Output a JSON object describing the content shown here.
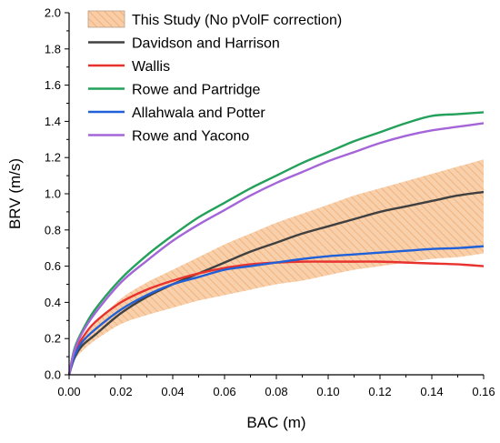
{
  "chart_data": {
    "type": "line",
    "xlabel": "BAC (m)",
    "ylabel": "BRV (m/s)",
    "xlim": [
      0,
      0.16
    ],
    "ylim": [
      0,
      2.0
    ],
    "xticks": [
      0.0,
      0.02,
      0.04,
      0.06,
      0.08,
      0.1,
      0.12,
      0.14,
      0.16
    ],
    "xtick_labels": [
      "0.00",
      "0.02",
      "0.04",
      "0.06",
      "0.08",
      "0.10",
      "0.12",
      "0.14",
      "0.16"
    ],
    "yticks": [
      0.0,
      0.2,
      0.4,
      0.6,
      0.8,
      1.0,
      1.2,
      1.4,
      1.6,
      1.8,
      2.0
    ],
    "ytick_labels": [
      "0.0",
      "0.2",
      "0.4",
      "0.6",
      "0.8",
      "1.0",
      "1.2",
      "1.4",
      "1.6",
      "1.8",
      "2.0"
    ],
    "grid": false,
    "legend_position": "top-left",
    "x": [
      0,
      0.002,
      0.005,
      0.01,
      0.02,
      0.03,
      0.04,
      0.05,
      0.06,
      0.07,
      0.08,
      0.09,
      0.1,
      0.11,
      0.12,
      0.13,
      0.14,
      0.15,
      0.16
    ],
    "band": {
      "name": "This Study (No pVolF correction)",
      "fill_color": "#f8c9a0",
      "hatch_color": "#f0a868",
      "lower": [
        0,
        0.08,
        0.13,
        0.19,
        0.28,
        0.33,
        0.37,
        0.41,
        0.44,
        0.47,
        0.5,
        0.52,
        0.55,
        0.58,
        0.6,
        0.62,
        0.64,
        0.65,
        0.67
      ],
      "upper": [
        0,
        0.12,
        0.19,
        0.28,
        0.42,
        0.51,
        0.58,
        0.65,
        0.72,
        0.78,
        0.84,
        0.89,
        0.94,
        0.99,
        1.03,
        1.07,
        1.11,
        1.15,
        1.19
      ]
    },
    "series": [
      {
        "name": "Davidson and Harrison",
        "color": "#404040",
        "values": [
          0,
          0.09,
          0.16,
          0.22,
          0.34,
          0.43,
          0.5,
          0.56,
          0.62,
          0.68,
          0.73,
          0.78,
          0.82,
          0.86,
          0.9,
          0.93,
          0.96,
          0.99,
          1.01
        ]
      },
      {
        "name": "Wallis",
        "color": "#e8322e",
        "values": [
          0,
          0.12,
          0.2,
          0.29,
          0.4,
          0.47,
          0.52,
          0.56,
          0.59,
          0.61,
          0.62,
          0.625,
          0.625,
          0.625,
          0.625,
          0.62,
          0.615,
          0.61,
          0.6
        ]
      },
      {
        "name": "Rowe and Partridge",
        "color": "#23a05a",
        "values": [
          0,
          0.14,
          0.24,
          0.36,
          0.53,
          0.66,
          0.77,
          0.87,
          0.95,
          1.03,
          1.1,
          1.17,
          1.23,
          1.29,
          1.34,
          1.39,
          1.43,
          1.44,
          1.45
        ]
      },
      {
        "name": "Allahwala and Potter",
        "color": "#2060d8",
        "values": [
          0,
          0.1,
          0.18,
          0.25,
          0.36,
          0.44,
          0.5,
          0.54,
          0.58,
          0.6,
          0.62,
          0.64,
          0.655,
          0.665,
          0.675,
          0.685,
          0.695,
          0.7,
          0.71
        ]
      },
      {
        "name": "Rowe and Yacono",
        "color": "#a465d8",
        "values": [
          0,
          0.13,
          0.23,
          0.34,
          0.51,
          0.63,
          0.74,
          0.83,
          0.91,
          0.99,
          1.06,
          1.12,
          1.18,
          1.23,
          1.28,
          1.32,
          1.35,
          1.37,
          1.39
        ]
      }
    ]
  }
}
